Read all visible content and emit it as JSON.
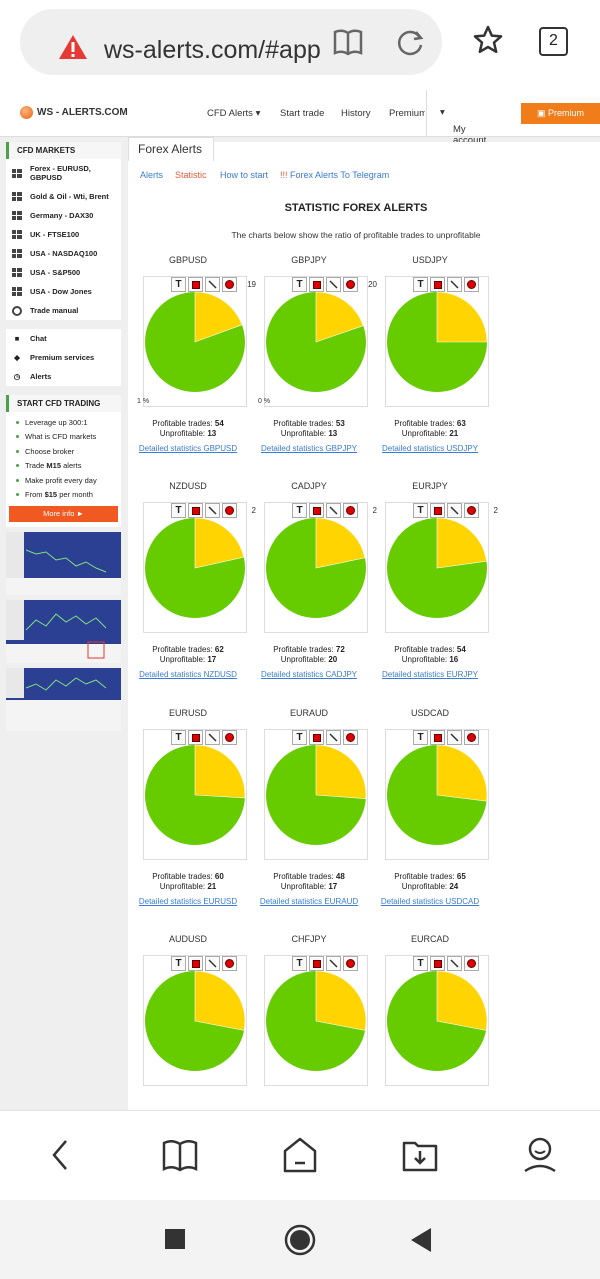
{
  "browser": {
    "url": "ws-alerts.com/#app/",
    "tab_count": "2",
    "icons": [
      "warning-icon",
      "reader-icon",
      "reload-icon",
      "star-icon",
      "tabs-icon"
    ]
  },
  "site": {
    "logo": "WS - ALERTS.COM",
    "nav": [
      "CFD Alerts",
      "Start trade",
      "History",
      "Premium"
    ],
    "account": "My account",
    "premium_button": "Premium"
  },
  "sidebar": {
    "markets_title": "CFD MARKETS",
    "markets": [
      "Forex - EURUSD, GBPUSD",
      "Gold & Oil - Wti, Brent",
      "Germany - DAX30",
      "UK - FTSE100",
      "USA - NASDAQ100",
      "USA - S&P500",
      "USA - Dow Jones",
      "Trade manual"
    ],
    "links": [
      "Chat",
      "Premium services",
      "Alerts"
    ],
    "start_title": "START CFD TRADING",
    "start_items": [
      "Leverage up 300:1",
      "What is CFD markets",
      "Choose broker",
      "Trade",
      "Make profit every day",
      "From"
    ],
    "m15": "M15",
    "alerts_word": "alerts",
    "price": "$15",
    "per_month": "per month",
    "more_button": "More info ►"
  },
  "main": {
    "tab": "Forex Alerts",
    "subnav": [
      "Alerts",
      "Statistic",
      "How to start",
      "Forex Alerts To Telegram"
    ],
    "heading": "STATISTIC FOREX ALERTS",
    "subheading": "The charts below show the ratio of profitable trades to unprofitable",
    "profitable_label": "Profitable trades:",
    "unprofitable_label": "Unprofitable:",
    "link_prefix": "Detailed statistics",
    "pairs": [
      {
        "name": "GBPUSD",
        "profitable": 54,
        "unprofitable": 13,
        "edge": "19"
      },
      {
        "name": "GBPJPY",
        "profitable": 53,
        "unprofitable": 13,
        "edge": "20"
      },
      {
        "name": "USDJPY",
        "profitable": 63,
        "unprofitable": 21,
        "edge": ""
      },
      {
        "name": "NZDUSD",
        "profitable": 62,
        "unprofitable": 17,
        "edge": "2"
      },
      {
        "name": "CADJPY",
        "profitable": 72,
        "unprofitable": 20,
        "edge": "2"
      },
      {
        "name": "EURJPY",
        "profitable": 54,
        "unprofitable": 16,
        "edge": "2"
      },
      {
        "name": "EURUSD",
        "profitable": 60,
        "unprofitable": 21,
        "edge": ""
      },
      {
        "name": "EURAUD",
        "profitable": 48,
        "unprofitable": 17,
        "edge": ""
      },
      {
        "name": "USDCAD",
        "profitable": 65,
        "unprofitable": 24,
        "edge": ""
      },
      {
        "name": "AUDUSD",
        "profitable": null,
        "unprofitable": null,
        "edge": ""
      },
      {
        "name": "CHFJPY",
        "profitable": null,
        "unprofitable": null,
        "edge": ""
      },
      {
        "name": "EURCAD",
        "profitable": null,
        "unprofitable": null,
        "edge": ""
      }
    ],
    "pie_colors": {
      "profitable": "#66cc00",
      "unprofitable": "#ffd400"
    },
    "edge_labels": [
      "1 %",
      "0 %"
    ]
  },
  "bottom_nav": [
    "back-icon",
    "bookmarks-icon",
    "home-icon",
    "downloads-icon",
    "profile-icon"
  ],
  "system_nav": [
    "recents-icon",
    "home-circle-icon",
    "back-triangle-icon"
  ]
}
